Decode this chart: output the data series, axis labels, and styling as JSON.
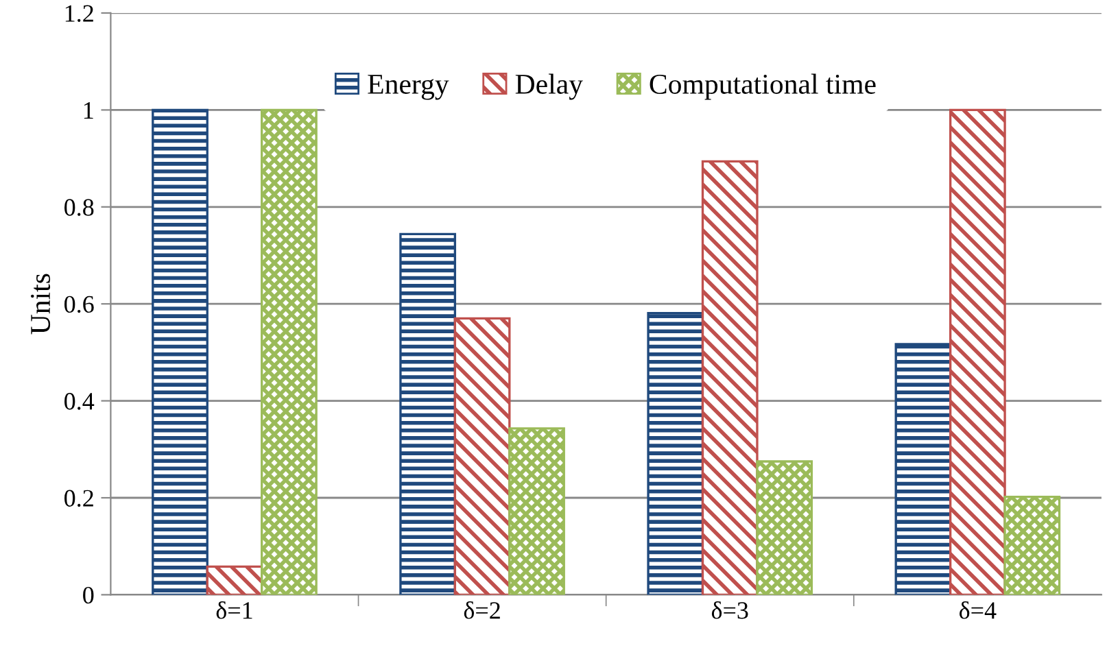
{
  "chart_data": {
    "type": "bar",
    "ylabel": "Units",
    "categories": [
      "δ=1",
      "δ=2",
      "δ=3",
      "δ=4"
    ],
    "series": [
      {
        "name": "Energy",
        "color": "#1f497d",
        "values": [
          1.0,
          0.744,
          0.581,
          0.517
        ]
      },
      {
        "name": "Delay",
        "color": "#c0504d",
        "values": [
          0.058,
          0.57,
          0.894,
          1.0
        ]
      },
      {
        "name": "Computational time",
        "color": "#9bbb59",
        "values": [
          1.0,
          0.343,
          0.275,
          0.202
        ]
      }
    ],
    "ylim": [
      0,
      1.2
    ],
    "yticks": [
      0,
      0.2,
      0.4,
      0.6,
      0.8,
      1,
      1.2
    ],
    "grid": "y",
    "legend": "top"
  }
}
